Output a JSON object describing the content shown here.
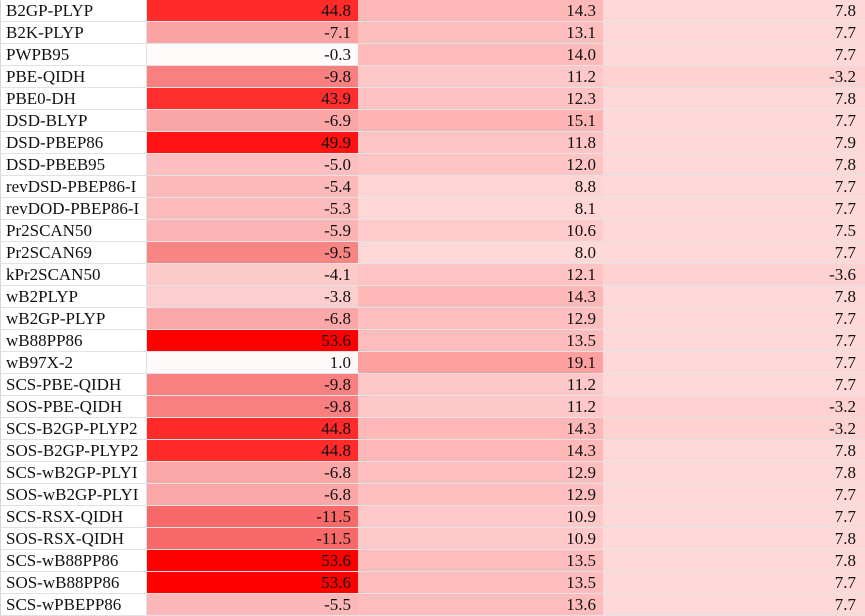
{
  "color_scale": {
    "col1": {
      "max_color": "#ff0000",
      "mid_color": "#ffffff",
      "neg_color": "#f86a6a"
    },
    "col2": {
      "low_color": "#ffd8d8",
      "high_color": "#ffa0a0"
    },
    "col3": {
      "pos_color": "#ffd9d9",
      "neg_color": "#ffd2d2"
    }
  },
  "rows": [
    {
      "name": "B2GP-PLYP",
      "v1": "44.8",
      "v2": "14.3",
      "v3": "7.8"
    },
    {
      "name": "B2K-PLYP",
      "v1": "-7.1",
      "v2": "13.1",
      "v3": "7.7"
    },
    {
      "name": "PWPB95",
      "v1": "-0.3",
      "v2": "14.0",
      "v3": "7.7"
    },
    {
      "name": "PBE-QIDH",
      "v1": "-9.8",
      "v2": "11.2",
      "v3": "-3.2"
    },
    {
      "name": "PBE0-DH",
      "v1": "43.9",
      "v2": "12.3",
      "v3": "7.8"
    },
    {
      "name": "DSD-BLYP",
      "v1": "-6.9",
      "v2": "15.1",
      "v3": "7.7"
    },
    {
      "name": "DSD-PBEP86",
      "v1": "49.9",
      "v2": "11.8",
      "v3": "7.9"
    },
    {
      "name": "DSD-PBEB95",
      "v1": "-5.0",
      "v2": "12.0",
      "v3": "7.8"
    },
    {
      "name": "revDSD-PBEP86-I",
      "v1": "-5.4",
      "v2": "8.8",
      "v3": "7.7"
    },
    {
      "name": "revDOD-PBEP86-I",
      "v1": "-5.3",
      "v2": "8.1",
      "v3": "7.7"
    },
    {
      "name": "Pr2SCAN50",
      "v1": "-5.9",
      "v2": "10.6",
      "v3": "7.5"
    },
    {
      "name": "Pr2SCAN69",
      "v1": "-9.5",
      "v2": "8.0",
      "v3": "7.7"
    },
    {
      "name": "kPr2SCAN50",
      "v1": "-4.1",
      "v2": "12.1",
      "v3": "-3.6"
    },
    {
      "name": "wB2PLYP",
      "v1": "-3.8",
      "v2": "14.3",
      "v3": "7.8"
    },
    {
      "name": "wB2GP-PLYP",
      "v1": "-6.8",
      "v2": "12.9",
      "v3": "7.7"
    },
    {
      "name": "wB88PP86",
      "v1": "53.6",
      "v2": "13.5",
      "v3": "7.7"
    },
    {
      "name": "wB97X-2",
      "v1": "1.0",
      "v2": "19.1",
      "v3": "7.7"
    },
    {
      "name": "SCS-PBE-QIDH",
      "v1": "-9.8",
      "v2": "11.2",
      "v3": "7.7"
    },
    {
      "name": "SOS-PBE-QIDH",
      "v1": "-9.8",
      "v2": "11.2",
      "v3": "-3.2"
    },
    {
      "name": "SCS-B2GP-PLYP2",
      "v1": "44.8",
      "v2": "14.3",
      "v3": "-3.2"
    },
    {
      "name": "SOS-B2GP-PLYP2",
      "v1": "44.8",
      "v2": "14.3",
      "v3": "7.8"
    },
    {
      "name": "SCS-wB2GP-PLYI",
      "v1": "-6.8",
      "v2": "12.9",
      "v3": "7.8"
    },
    {
      "name": "SOS-wB2GP-PLYI",
      "v1": "-6.8",
      "v2": "12.9",
      "v3": "7.7"
    },
    {
      "name": "SCS-RSX-QIDH",
      "v1": "-11.5",
      "v2": "10.9",
      "v3": "7.7"
    },
    {
      "name": "SOS-RSX-QIDH",
      "v1": "-11.5",
      "v2": "10.9",
      "v3": "7.8"
    },
    {
      "name": "SCS-wB88PP86",
      "v1": "53.6",
      "v2": "13.5",
      "v3": "7.8"
    },
    {
      "name": "SOS-wB88PP86",
      "v1": "53.6",
      "v2": "13.5",
      "v3": "7.7"
    },
    {
      "name": "SCS-wPBEPP86",
      "v1": "-5.5",
      "v2": "13.6",
      "v3": "7.7"
    }
  ]
}
